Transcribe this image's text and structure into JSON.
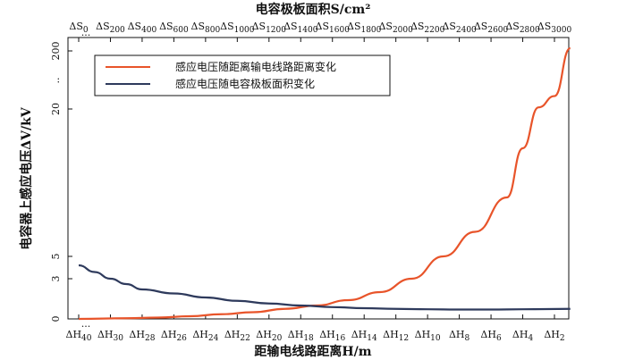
{
  "chart_data": {
    "type": "line",
    "title_top": "电容极板面积S/cm²",
    "xlabel": "距输电线路距离H/m",
    "ylabel": "电容器上感应电压ΔV/kV",
    "x_ticks_bottom": [
      "ΔH40",
      "ΔH30",
      "ΔH28",
      "ΔH26",
      "ΔH24",
      "ΔH22",
      "ΔH20",
      "ΔH18",
      "ΔH16",
      "ΔH14",
      "ΔH12",
      "ΔH10",
      "ΔH8",
      "ΔH6",
      "ΔH4",
      "ΔH2"
    ],
    "x_ticks_top": [
      "ΔS0",
      "ΔS200",
      "ΔS400",
      "ΔS600",
      "ΔS800",
      "ΔS1000",
      "ΔS1200",
      "ΔS1400",
      "ΔS1600",
      "ΔS1800",
      "ΔS2000",
      "ΔS2200",
      "ΔS2400",
      "ΔS2600",
      "ΔS2800",
      "ΔS3000"
    ],
    "y_ticks": [
      "0",
      "3",
      "5",
      "20",
      "200"
    ],
    "y_axis_break": "..",
    "x_axis_break": "...",
    "legend": {
      "position": "top-left",
      "entries": [
        "感应电压随距离输电线路距离变化",
        "感应电压随电容极板面积变化"
      ]
    },
    "grid": false,
    "series": [
      {
        "name": "感应电压随距离输电线路距离变化",
        "color": "#e8542a",
        "values": [
          0.0,
          0.05,
          0.1,
          0.2,
          0.35,
          0.5,
          0.75,
          1.0,
          1.4,
          2.0,
          3.0,
          5.0,
          7.5,
          11.0,
          16.0,
          25.0,
          60.0,
          210.0
        ],
        "x_index": [
          0,
          1.5,
          2.5,
          3.5,
          4.5,
          5.5,
          6.5,
          7.5,
          8.5,
          9.5,
          10.5,
          11.5,
          12.5,
          13.5,
          14.0,
          14.5,
          15.0,
          15.5
        ]
      },
      {
        "name": "感应电压随电容极板面积变化",
        "color": "#2e3a5c",
        "values": [
          4.2,
          3.6,
          3.0,
          2.6,
          2.2,
          1.9,
          1.6,
          1.35,
          1.15,
          1.0,
          0.88,
          0.8,
          0.75,
          0.72,
          0.7,
          0.7,
          0.72,
          0.75
        ],
        "x_index": [
          0,
          0.5,
          1,
          1.5,
          2,
          3,
          4,
          5,
          6,
          7,
          8,
          9,
          10,
          11,
          12,
          13,
          14,
          15.5
        ]
      }
    ]
  }
}
